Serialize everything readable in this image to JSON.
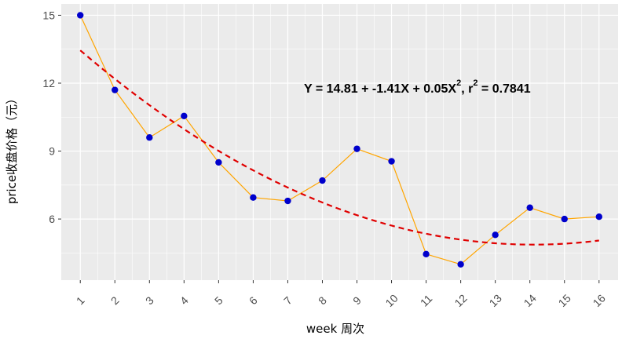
{
  "chart_data": {
    "type": "scatter",
    "xlabel": "week 周次",
    "ylabel": "price收盘价格（元）",
    "x": [
      1,
      2,
      3,
      4,
      5,
      6,
      7,
      8,
      9,
      10,
      11,
      12,
      13,
      14,
      15,
      16
    ],
    "x_tick_labels": [
      "1",
      "2",
      "3",
      "4",
      "5",
      "6",
      "7",
      "8",
      "9",
      "10",
      "11",
      "12",
      "13",
      "14",
      "15",
      "16"
    ],
    "y_ticks": [
      6,
      9,
      12,
      15
    ],
    "y_tick_labels": [
      "6",
      "9",
      "12",
      "15"
    ],
    "xlim": [
      0.45,
      16.55
    ],
    "ylim": [
      3.3,
      15.5
    ],
    "grid": true,
    "series": [
      {
        "type": "line-points",
        "x": [
          1,
          2,
          3,
          4,
          5,
          6,
          7,
          8,
          9,
          10,
          11,
          12,
          13,
          14,
          15,
          16
        ],
        "values": [
          15.0,
          11.7,
          9.6,
          10.55,
          8.5,
          6.95,
          6.8,
          7.7,
          9.1,
          8.55,
          4.45,
          4.0,
          5.3,
          6.5,
          6.0,
          6.1
        ],
        "point_color": "#0000cc",
        "line_color": "#ffa500"
      },
      {
        "type": "fit",
        "style": "dashed",
        "color": "#e00000",
        "model": "quadratic",
        "coefficients": {
          "intercept": 14.81,
          "b1": -1.41,
          "b2": 0.05
        }
      }
    ],
    "annotation": {
      "prefix": "Y = 14.81 + -1.41X + 0.05X",
      "exp1": "2",
      "middle": ",  r",
      "exp2": "2",
      "suffix": " = 0.7841"
    }
  }
}
